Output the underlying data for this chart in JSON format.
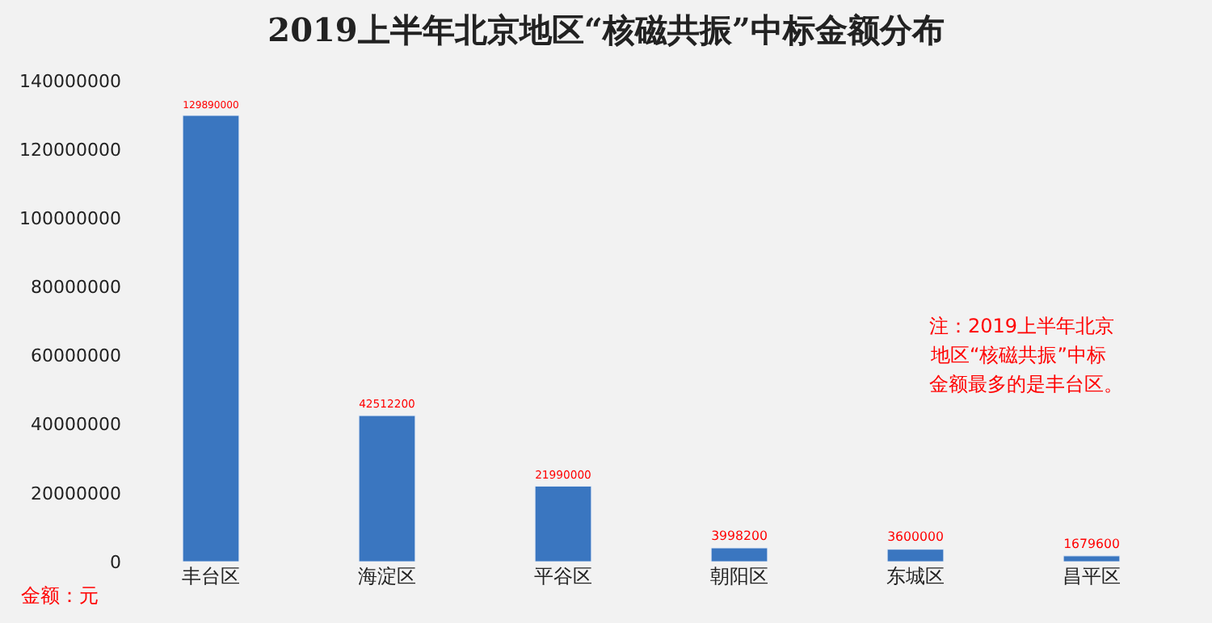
{
  "chart_data": {
    "type": "bar",
    "title": "2019上半年北京地区“核磁共振”中标金额分布",
    "ylabel": "金额：元",
    "categories": [
      "丰台区",
      "海淀区",
      "平谷区",
      "朝阳区",
      "东城区",
      "昌平区"
    ],
    "values": [
      129890000,
      42512200,
      21990000,
      3998200,
      3600000,
      1679600
    ],
    "color": "#3a76c0",
    "ylim": [
      0,
      140000000
    ],
    "yticks": [
      0,
      20000000,
      40000000,
      60000000,
      80000000,
      100000000,
      120000000,
      140000000
    ],
    "data_labels": true,
    "grid": false,
    "annotations": [
      "注：2019上半年北京",
      "地区“核磁共振”中标",
      "金额最多的是丰台区。"
    ]
  }
}
